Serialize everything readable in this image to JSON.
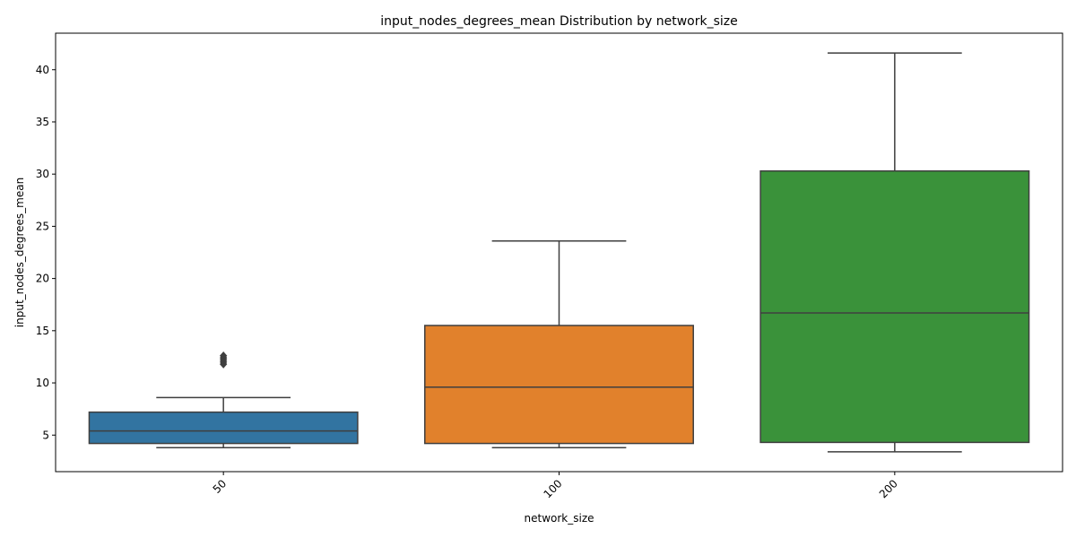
{
  "chart_data": {
    "type": "box",
    "title": "input_nodes_degrees_mean Distribution by network_size",
    "xlabel": "network_size",
    "ylabel": "input_nodes_degrees_mean",
    "ylim": [
      1.5,
      43.5
    ],
    "yticks": [
      5,
      10,
      15,
      20,
      25,
      30,
      35,
      40
    ],
    "grid": false,
    "xtick_rotation": 45,
    "categories": [
      "50",
      "100",
      "200"
    ],
    "boxes": [
      {
        "category": "50",
        "whisker_low": 3.8,
        "q1": 4.2,
        "median": 5.4,
        "q3": 7.2,
        "whisker_high": 8.6,
        "outliers": [
          11.8,
          12.0,
          12.2,
          12.4,
          12.6
        ],
        "color": "#3274a1"
      },
      {
        "category": "100",
        "whisker_low": 3.8,
        "q1": 4.2,
        "median": 9.6,
        "q3": 15.5,
        "whisker_high": 23.6,
        "outliers": [],
        "color": "#e1812c"
      },
      {
        "category": "200",
        "whisker_low": 3.4,
        "q1": 4.3,
        "median": 16.7,
        "q3": 30.3,
        "whisker_high": 41.6,
        "outliers": [],
        "color": "#3a923a"
      }
    ]
  }
}
